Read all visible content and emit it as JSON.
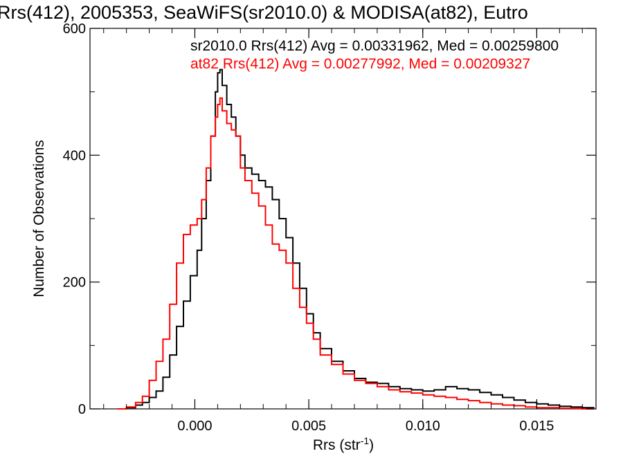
{
  "chart_data": {
    "type": "line",
    "title": "Rrs(412), 2005353, SeaWiFS(sr2010.0) & MODISA(at82), Eutro",
    "xlabel": "Rrs (str",
    "xlabel_sup": "-1",
    "xlabel_end": ")",
    "ylabel": "Number of Observations",
    "xlim": [
      -0.0046,
      0.0176
    ],
    "ylim": [
      0,
      600
    ],
    "x_ticks": [
      0.0,
      0.005,
      0.01,
      0.015
    ],
    "x_tick_labels": [
      "0.000",
      "0.005",
      "0.010",
      "0.015"
    ],
    "y_ticks": [
      0,
      200,
      400,
      600
    ],
    "y_tick_labels": [
      "0",
      "200",
      "400",
      "600"
    ],
    "grid": false,
    "legend_position": "top-right",
    "series": [
      {
        "name": "sr2010.0 Rrs(412) Avg = 0.00331962, Med = 0.00259800",
        "color": "#000000",
        "x": [
          -0.0034,
          -0.003,
          -0.0026,
          -0.0023,
          -0.002,
          -0.0017,
          -0.0014,
          -0.0011,
          -0.0008,
          -0.0005,
          -0.0002,
          0.0001,
          0.0003,
          0.0005,
          0.0007,
          0.0009,
          0.001,
          0.0011,
          0.0012,
          0.0014,
          0.0016,
          0.0018,
          0.002,
          0.0022,
          0.0025,
          0.0028,
          0.0031,
          0.0034,
          0.0037,
          0.004,
          0.0043,
          0.0046,
          0.0049,
          0.0052,
          0.0055,
          0.006,
          0.0065,
          0.007,
          0.0075,
          0.008,
          0.0085,
          0.009,
          0.0095,
          0.01,
          0.0105,
          0.011,
          0.0115,
          0.012,
          0.0125,
          0.013,
          0.0135,
          0.014,
          0.0145,
          0.015,
          0.0155,
          0.016,
          0.0165,
          0.017,
          0.0175
        ],
        "y": [
          0,
          2,
          6,
          10,
          18,
          28,
          50,
          85,
          130,
          170,
          210,
          250,
          300,
          360,
          430,
          500,
          530,
          535,
          510,
          480,
          460,
          430,
          400,
          380,
          370,
          360,
          350,
          330,
          300,
          270,
          230,
          190,
          150,
          120,
          95,
          75,
          60,
          48,
          42,
          40,
          35,
          32,
          30,
          28,
          30,
          35,
          32,
          30,
          26,
          22,
          18,
          14,
          10,
          8,
          6,
          4,
          3,
          2,
          1
        ]
      },
      {
        "name": "at82 Rrs(412) Avg = 0.00277992, Med = 0.00209327",
        "color": "#ff0000",
        "x": [
          -0.0034,
          -0.003,
          -0.0026,
          -0.0023,
          -0.002,
          -0.0017,
          -0.0014,
          -0.0011,
          -0.0008,
          -0.0005,
          -0.0002,
          0.0001,
          0.0003,
          0.0005,
          0.0007,
          0.0009,
          0.001,
          0.0011,
          0.0012,
          0.0014,
          0.0016,
          0.0018,
          0.002,
          0.0022,
          0.0025,
          0.0028,
          0.0031,
          0.0034,
          0.0037,
          0.004,
          0.0043,
          0.0046,
          0.0049,
          0.0052,
          0.0055,
          0.006,
          0.0065,
          0.007,
          0.0075,
          0.008,
          0.0085,
          0.009,
          0.0095,
          0.01,
          0.0105,
          0.011,
          0.0115,
          0.012,
          0.0125,
          0.013,
          0.0135,
          0.014,
          0.0145,
          0.015,
          0.0155,
          0.016,
          0.0165,
          0.017,
          0.0175
        ],
        "y": [
          0,
          3,
          10,
          20,
          45,
          75,
          110,
          165,
          230,
          275,
          290,
          300,
          330,
          380,
          430,
          460,
          480,
          490,
          470,
          450,
          440,
          430,
          380,
          360,
          340,
          320,
          290,
          260,
          250,
          230,
          190,
          160,
          135,
          110,
          85,
          70,
          55,
          45,
          40,
          35,
          30,
          27,
          25,
          22,
          20,
          18,
          15,
          13,
          10,
          8,
          6,
          5,
          3,
          2,
          2,
          1,
          1,
          0,
          0
        ]
      }
    ]
  }
}
